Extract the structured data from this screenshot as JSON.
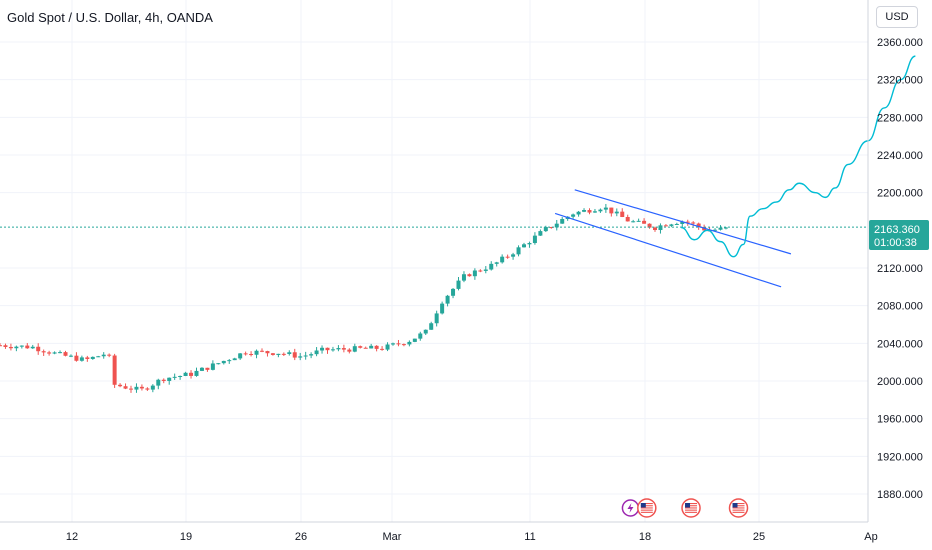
{
  "header": {
    "title": "Gold Spot / U.S. Dollar, 4h, OANDA",
    "currency_label": "USD"
  },
  "price_badge": {
    "price": "2163.360",
    "countdown": "01:00:38",
    "color": "#26a69a"
  },
  "colors": {
    "up": "#26a69a",
    "down": "#ef5350",
    "channel": "#2962ff",
    "projection": "#00bcd4",
    "grid": "#f0f3fa",
    "axis_text": "#131722"
  },
  "events": [
    {
      "icon": "lightning-icon",
      "day_index": 19.25
    },
    {
      "icon": "us-flag-icon",
      "day_index": 19.75
    },
    {
      "icon": "us-flag-icon",
      "day_index": 21.1
    },
    {
      "icon": "us-flag-icon",
      "day_index": 22.55
    }
  ],
  "chart_data": {
    "type": "candlestick",
    "title": "Gold Spot / U.S. Dollar, 4h, OANDA",
    "x_ticks": [
      "12",
      "19",
      "26",
      "Mar",
      "11",
      "18",
      "25",
      "Ap"
    ],
    "y_ticks": [
      "2360.000",
      "2320.000",
      "2280.000",
      "2240.000",
      "2200.000",
      "2120.000",
      "2080.000",
      "2040.000",
      "2000.000",
      "1960.000",
      "1920.000",
      "1880.000"
    ],
    "ylim": [
      1860,
      2380
    ],
    "grid": true,
    "last_price": 2163.36,
    "anchors": [
      [
        0.0,
        2038
      ],
      [
        1.0,
        2036
      ],
      [
        1.8,
        2028
      ],
      [
        2.6,
        2022
      ],
      [
        3.3,
        2030
      ],
      [
        3.5,
        1996
      ],
      [
        4.3,
        1990
      ],
      [
        5.0,
        2003
      ],
      [
        5.8,
        2007
      ],
      [
        6.6,
        2018
      ],
      [
        7.5,
        2031
      ],
      [
        8.5,
        2030
      ],
      [
        9.2,
        2026
      ],
      [
        9.9,
        2033
      ],
      [
        10.8,
        2034
      ],
      [
        11.7,
        2035
      ],
      [
        12.5,
        2043
      ],
      [
        13.0,
        2052
      ],
      [
        13.5,
        2085
      ],
      [
        14.2,
        2112
      ],
      [
        15.1,
        2124
      ],
      [
        15.9,
        2142
      ],
      [
        16.7,
        2162
      ],
      [
        17.5,
        2178
      ],
      [
        18.4,
        2185
      ],
      [
        19.2,
        2170
      ],
      [
        20.0,
        2163
      ],
      [
        20.4,
        2168
      ],
      [
        20.9,
        2170
      ],
      [
        21.6,
        2160
      ],
      [
        22.3,
        2162
      ]
    ],
    "channel_lines": [
      {
        "start": [
          17.55,
          2203
        ],
        "end": [
          24.15,
          2135
        ]
      },
      {
        "start": [
          16.95,
          2178
        ],
        "end": [
          23.85,
          2100
        ]
      }
    ],
    "projection_path": [
      [
        20.8,
        2163
      ],
      [
        21.2,
        2150
      ],
      [
        21.6,
        2160
      ],
      [
        22.0,
        2148
      ],
      [
        22.4,
        2132
      ],
      [
        22.7,
        2145
      ],
      [
        22.9,
        2175
      ],
      [
        23.3,
        2183
      ],
      [
        23.7,
        2190
      ],
      [
        24.1,
        2203
      ],
      [
        24.4,
        2210
      ],
      [
        24.9,
        2200
      ],
      [
        25.2,
        2195
      ],
      [
        25.5,
        2205
      ],
      [
        25.9,
        2230
      ],
      [
        26.5,
        2255
      ],
      [
        27.0,
        2290
      ],
      [
        27.5,
        2320
      ],
      [
        27.95,
        2345
      ]
    ]
  }
}
